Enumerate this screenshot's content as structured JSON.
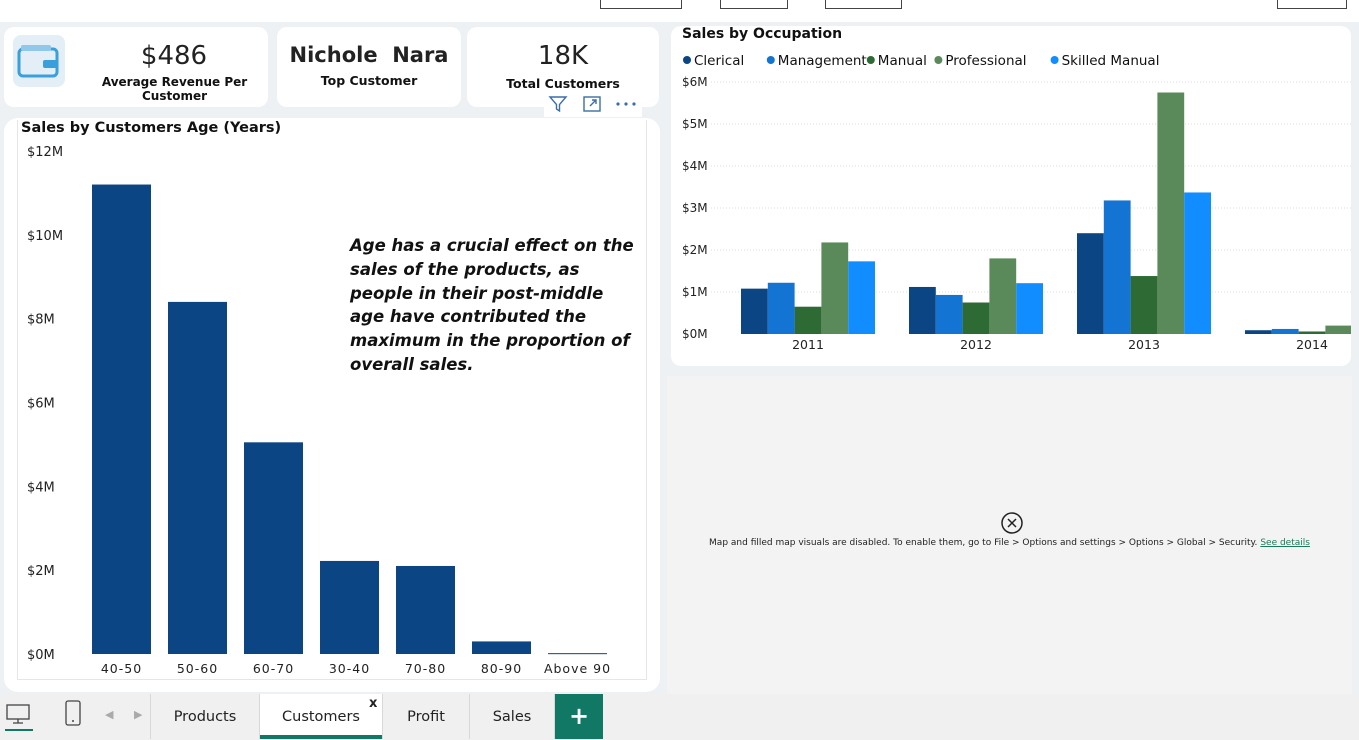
{
  "kpis": {
    "avg_revenue": {
      "value": "$486",
      "label": "Average Revenue Per Customer",
      "icon": "wallet-icon"
    },
    "top_customer": {
      "value": "Nichole  Nara",
      "label": "Top Customer"
    },
    "total_customers": {
      "value": "18K",
      "label": "Total Customers"
    }
  },
  "visual_header": {
    "icons": [
      "filter-icon",
      "focus-mode-icon",
      "more-options-icon"
    ]
  },
  "age_chart": {
    "title": "Sales by Customers Age (Years)",
    "insight": "Age has a crucial effect on the sales of the products, as people in their post-middle age have contributed the maximum in the proportion of overall sales."
  },
  "occupation_chart": {
    "title": "Sales by Occupation"
  },
  "map": {
    "message": "Map and filled map visuals are disabled. To enable them, go to File > Options and settings > Options > Global > Security.",
    "link": "See details",
    "icon": "close-circle-icon"
  },
  "tabs": {
    "items": [
      {
        "label": "Products",
        "active": false
      },
      {
        "label": "Customers",
        "active": true
      },
      {
        "label": "Profit",
        "active": false
      },
      {
        "label": "Sales",
        "active": false
      }
    ],
    "close_label": "x",
    "add_label": "+",
    "icons": [
      "desktop-layout-icon",
      "mobile-layout-icon",
      "prev-page-icon",
      "next-page-icon"
    ]
  },
  "colors": {
    "bar_primary": "#0b4584",
    "accent": "#117865"
  },
  "chart_data": [
    {
      "type": "bar",
      "title": "Sales by Customers Age (Years)",
      "categories": [
        "40-50",
        "50-60",
        "60-70",
        "30-40",
        "70-80",
        "80-90",
        "Above 90"
      ],
      "values": [
        11.2,
        8.4,
        5.05,
        2.22,
        2.1,
        0.3,
        0.02
      ],
      "y_ticks": [
        "$0M",
        "$2M",
        "$4M",
        "$6M",
        "$8M",
        "$10M",
        "$12M"
      ],
      "ylim": [
        0,
        12
      ],
      "grid": false
    },
    {
      "type": "bar",
      "title": "Sales by Occupation",
      "categories": [
        "2011",
        "2012",
        "2013",
        "2014"
      ],
      "series": [
        {
          "name": "Clerical",
          "color": "#0b4584",
          "values": [
            1.08,
            1.12,
            2.4,
            0.09
          ]
        },
        {
          "name": "Management",
          "color": "#1474d4",
          "values": [
            1.22,
            0.93,
            3.18,
            0.12
          ]
        },
        {
          "name": "Manual",
          "color": "#2e6b34",
          "values": [
            0.65,
            0.75,
            1.38,
            0.06
          ]
        },
        {
          "name": "Professional",
          "color": "#5a8a5a",
          "values": [
            2.18,
            1.8,
            5.75,
            0.2
          ]
        },
        {
          "name": "Skilled Manual",
          "color": "#118dff",
          "values": [
            1.73,
            1.21,
            3.37,
            0.11
          ]
        }
      ],
      "y_ticks": [
        "$0M",
        "$1M",
        "$2M",
        "$3M",
        "$4M",
        "$5M",
        "$6M"
      ],
      "ylim": [
        0,
        6
      ],
      "legend": "top",
      "grid": true
    }
  ]
}
